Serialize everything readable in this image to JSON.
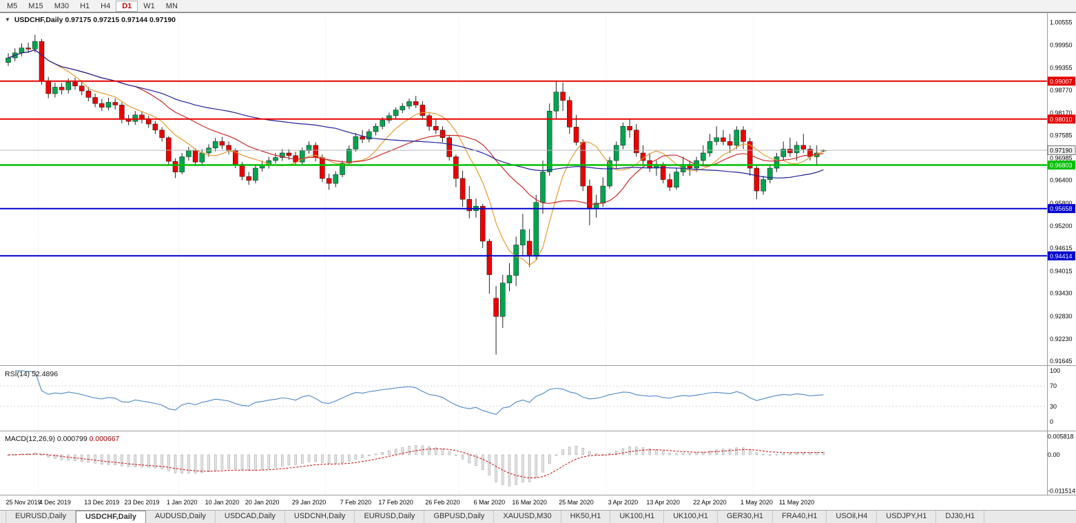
{
  "toolbar": {
    "timeframes": [
      {
        "label": "M5",
        "active": false
      },
      {
        "label": "M15",
        "active": false
      },
      {
        "label": "M30",
        "active": false
      },
      {
        "label": "H1",
        "active": false
      },
      {
        "label": "H4",
        "active": false
      },
      {
        "label": "D1",
        "active": true
      },
      {
        "label": "W1",
        "active": false
      },
      {
        "label": "MN",
        "active": false
      }
    ]
  },
  "chart": {
    "symbol_label": "USDCHF,Daily",
    "ohlc": {
      "open": "0.97175",
      "high": "0.97215",
      "low": "0.97144",
      "close": "0.97190"
    },
    "current_price": "0.97190"
  },
  "indicators": {
    "rsi": {
      "name": "RSI(14)",
      "value": "52.4896",
      "levels": [
        {
          "label": "100",
          "value": 100
        },
        {
          "label": "70",
          "value": 70
        },
        {
          "label": "30",
          "value": 30
        },
        {
          "label": "0",
          "value": 0
        }
      ]
    },
    "macd": {
      "name": "MACD(12,26,9)",
      "value_main": "0.000799",
      "value_signal": "0.000667",
      "axis": [
        {
          "label": "0.005818",
          "value": 0.005818
        },
        {
          "label": "0.00",
          "value": 0
        },
        {
          "label": "-0.011514",
          "value": -0.011514
        }
      ]
    }
  },
  "price_axis_labels": [
    "1.00555",
    "0.99950",
    "0.99355",
    "0.98770",
    "0.98170",
    "0.97585",
    "0.96985",
    "0.96400",
    "0.95800",
    "0.95200",
    "0.94615",
    "0.94015",
    "0.93430",
    "0.92830",
    "0.92230",
    "0.91645"
  ],
  "hlines": [
    {
      "price": 0.99007,
      "label": "0.99007",
      "color": "#e60000",
      "width": 2
    },
    {
      "price": 0.9801,
      "label": "0.98010",
      "color": "#e60000",
      "width": 2
    },
    {
      "price": 0.96803,
      "label": "0.96803",
      "color": "#00c000",
      "width": 2.5
    },
    {
      "price": 0.95658,
      "label": "0.95658",
      "color": "#0000d0",
      "width": 2
    },
    {
      "price": 0.94414,
      "label": "0.94414",
      "color": "#0000d0",
      "width": 2
    }
  ],
  "chart_data": {
    "type": "candlestick",
    "symbol": "USDCHF",
    "timeframe": "Daily",
    "price_range": {
      "top": 1.0067,
      "bottom": 0.9163
    },
    "colors": {
      "up": "#00a64f",
      "down": "#ee0000"
    },
    "moving_averages": [
      {
        "period": 8,
        "color": "#e39b2d"
      },
      {
        "period": 20,
        "color": "#cc2626"
      },
      {
        "period": 50,
        "color": "#1f1f99"
      }
    ],
    "separators": [
      5,
      26,
      48,
      68,
      90,
      112
    ],
    "time_labels": [
      {
        "label": "25 Nov 2019",
        "index": 0
      },
      {
        "label": "4 Dec 2019",
        "index": 7
      },
      {
        "label": "13 Dec 2019",
        "index": 14
      },
      {
        "label": "23 Dec 2019",
        "index": 20
      },
      {
        "label": "1 Jan 2020",
        "index": 26
      },
      {
        "label": "10 Jan 2020",
        "index": 32
      },
      {
        "label": "20 Jan 2020",
        "index": 38
      },
      {
        "label": "29 Jan 2020",
        "index": 45
      },
      {
        "label": "7 Feb 2020",
        "index": 52
      },
      {
        "label": "17 Feb 2020",
        "index": 58
      },
      {
        "label": "26 Feb 2020",
        "index": 65
      },
      {
        "label": "6 Mar 2020",
        "index": 72
      },
      {
        "label": "16 Mar 2020",
        "index": 78
      },
      {
        "label": "25 Mar 2020",
        "index": 85
      },
      {
        "label": "3 Apr 2020",
        "index": 92
      },
      {
        "label": "13 Apr 2020",
        "index": 98
      },
      {
        "label": "22 Apr 2020",
        "index": 105
      },
      {
        "label": "1 May 2020",
        "index": 112
      },
      {
        "label": "11 May 2020",
        "index": 118
      }
    ],
    "candles": [
      [
        0.995,
        0.9974,
        0.9941,
        0.9962
      ],
      [
        0.9962,
        0.9987,
        0.9953,
        0.9975
      ],
      [
        0.9975,
        1.0,
        0.9966,
        0.9988
      ],
      [
        0.9988,
        1.0002,
        0.9975,
        0.9985
      ],
      [
        0.9985,
        1.0023,
        0.9976,
        1.0005
      ],
      [
        1.0005,
        1.0012,
        0.9892,
        0.9902
      ],
      [
        0.9902,
        0.9912,
        0.9856,
        0.9868
      ],
      [
        0.9868,
        0.9897,
        0.9858,
        0.9885
      ],
      [
        0.9885,
        0.9896,
        0.9866,
        0.9878
      ],
      [
        0.9878,
        0.9908,
        0.9868,
        0.9898
      ],
      [
        0.9898,
        0.991,
        0.9878,
        0.9888
      ],
      [
        0.9888,
        0.9898,
        0.9864,
        0.9875
      ],
      [
        0.9875,
        0.9885,
        0.9848,
        0.9858
      ],
      [
        0.9858,
        0.9868,
        0.9832,
        0.9842
      ],
      [
        0.9842,
        0.9854,
        0.9822,
        0.9832
      ],
      [
        0.9832,
        0.9857,
        0.9824,
        0.9845
      ],
      [
        0.9845,
        0.9856,
        0.9826,
        0.9838
      ],
      [
        0.9838,
        0.9845,
        0.979,
        0.98
      ],
      [
        0.98,
        0.9812,
        0.9785,
        0.9795
      ],
      [
        0.9795,
        0.9822,
        0.9786,
        0.9812
      ],
      [
        0.9812,
        0.9822,
        0.979,
        0.98
      ],
      [
        0.98,
        0.981,
        0.9778,
        0.9788
      ],
      [
        0.9788,
        0.9796,
        0.9762,
        0.9772
      ],
      [
        0.9772,
        0.978,
        0.9742,
        0.9752
      ],
      [
        0.9752,
        0.9756,
        0.968,
        0.969
      ],
      [
        0.969,
        0.9698,
        0.9646,
        0.9662
      ],
      [
        0.9662,
        0.9712,
        0.9656,
        0.9702
      ],
      [
        0.9702,
        0.9728,
        0.9692,
        0.9718
      ],
      [
        0.9718,
        0.9724,
        0.9678,
        0.9688
      ],
      [
        0.9688,
        0.9722,
        0.968,
        0.9712
      ],
      [
        0.9712,
        0.9735,
        0.9702,
        0.9725
      ],
      [
        0.9725,
        0.9752,
        0.9716,
        0.9742
      ],
      [
        0.9742,
        0.9754,
        0.9722,
        0.9732
      ],
      [
        0.9732,
        0.9742,
        0.9708,
        0.9718
      ],
      [
        0.9718,
        0.9724,
        0.9672,
        0.9682
      ],
      [
        0.9682,
        0.9688,
        0.964,
        0.965
      ],
      [
        0.965,
        0.9662,
        0.9628,
        0.964
      ],
      [
        0.964,
        0.9682,
        0.9632,
        0.9672
      ],
      [
        0.9672,
        0.9692,
        0.9663,
        0.968
      ],
      [
        0.968,
        0.9702,
        0.9671,
        0.9692
      ],
      [
        0.9692,
        0.9712,
        0.9684,
        0.97
      ],
      [
        0.97,
        0.9722,
        0.9691,
        0.9712
      ],
      [
        0.9712,
        0.9722,
        0.9694,
        0.9705
      ],
      [
        0.9705,
        0.9715,
        0.9678,
        0.9688
      ],
      [
        0.9688,
        0.9726,
        0.968,
        0.9718
      ],
      [
        0.9718,
        0.9742,
        0.971,
        0.9732
      ],
      [
        0.9732,
        0.974,
        0.969,
        0.97
      ],
      [
        0.97,
        0.9708,
        0.9636,
        0.9645
      ],
      [
        0.9645,
        0.9658,
        0.9615,
        0.9632
      ],
      [
        0.9632,
        0.9664,
        0.9622,
        0.9655
      ],
      [
        0.9655,
        0.9692,
        0.9648,
        0.9685
      ],
      [
        0.9685,
        0.9732,
        0.9678,
        0.9722
      ],
      [
        0.9722,
        0.9764,
        0.9715,
        0.9755
      ],
      [
        0.9755,
        0.9772,
        0.9738,
        0.9748
      ],
      [
        0.9748,
        0.9775,
        0.974,
        0.9768
      ],
      [
        0.9768,
        0.979,
        0.9758,
        0.9782
      ],
      [
        0.9782,
        0.9806,
        0.9774,
        0.9798
      ],
      [
        0.9798,
        0.9818,
        0.979,
        0.981
      ],
      [
        0.981,
        0.9832,
        0.9802,
        0.9825
      ],
      [
        0.9825,
        0.9843,
        0.9817,
        0.9835
      ],
      [
        0.9835,
        0.9855,
        0.9827,
        0.9847
      ],
      [
        0.9847,
        0.9862,
        0.983,
        0.9838
      ],
      [
        0.9838,
        0.9848,
        0.98,
        0.981
      ],
      [
        0.981,
        0.9816,
        0.977,
        0.9782
      ],
      [
        0.9782,
        0.98,
        0.9762,
        0.9772
      ],
      [
        0.9772,
        0.9782,
        0.974,
        0.9752
      ],
      [
        0.9752,
        0.9758,
        0.9692,
        0.9702
      ],
      [
        0.9702,
        0.9708,
        0.9622,
        0.9645
      ],
      [
        0.9645,
        0.9665,
        0.957,
        0.959
      ],
      [
        0.959,
        0.9625,
        0.954,
        0.956
      ],
      [
        0.956,
        0.9592,
        0.9542,
        0.9572
      ],
      [
        0.9572,
        0.9578,
        0.9462,
        0.948
      ],
      [
        0.948,
        0.9486,
        0.9342,
        0.9392
      ],
      [
        0.933,
        0.9362,
        0.9182,
        0.9282
      ],
      [
        0.9282,
        0.9392,
        0.9252,
        0.937
      ],
      [
        0.937,
        0.9422,
        0.9348,
        0.939
      ],
      [
        0.939,
        0.9492,
        0.9362,
        0.947
      ],
      [
        0.947,
        0.9552,
        0.9442,
        0.951
      ],
      [
        0.948,
        0.9512,
        0.9412,
        0.9442
      ],
      [
        0.9442,
        0.9602,
        0.9432,
        0.9582
      ],
      [
        0.9582,
        0.9692,
        0.9552,
        0.9662
      ],
      [
        0.9662,
        0.9842,
        0.9652,
        0.9822
      ],
      [
        0.9822,
        0.9901,
        0.9802,
        0.9872
      ],
      [
        0.9872,
        0.9897,
        0.9822,
        0.985
      ],
      [
        0.985,
        0.986,
        0.9762,
        0.978
      ],
      [
        0.978,
        0.9812,
        0.9732,
        0.974
      ],
      [
        0.974,
        0.9748,
        0.9612,
        0.9625
      ],
      [
        0.9625,
        0.9642,
        0.9522,
        0.9565
      ],
      [
        0.9565,
        0.9602,
        0.9542,
        0.958
      ],
      [
        0.958,
        0.9648,
        0.957,
        0.9625
      ],
      [
        0.9625,
        0.9702,
        0.9618,
        0.9692
      ],
      [
        0.9692,
        0.9742,
        0.9672,
        0.9732
      ],
      [
        0.9732,
        0.9792,
        0.9722,
        0.9782
      ],
      [
        0.9782,
        0.9802,
        0.9752,
        0.9772
      ],
      [
        0.9772,
        0.9788,
        0.9702,
        0.9712
      ],
      [
        0.9712,
        0.9732,
        0.9682,
        0.9692
      ],
      [
        0.9692,
        0.9712,
        0.9662,
        0.9672
      ],
      [
        0.9672,
        0.9692,
        0.9652,
        0.9682
      ],
      [
        0.9682,
        0.9688,
        0.9632,
        0.9642
      ],
      [
        0.9642,
        0.9658,
        0.9612,
        0.9622
      ],
      [
        0.9622,
        0.9672,
        0.9615,
        0.9662
      ],
      [
        0.9662,
        0.9702,
        0.9652,
        0.9682
      ],
      [
        0.9682,
        0.9692,
        0.9652,
        0.9672
      ],
      [
        0.9672,
        0.9702,
        0.9662,
        0.9692
      ],
      [
        0.9692,
        0.9732,
        0.9682,
        0.9712
      ],
      [
        0.9712,
        0.9762,
        0.9702,
        0.9742
      ],
      [
        0.9742,
        0.9782,
        0.9732,
        0.9752
      ],
      [
        0.9752,
        0.9772,
        0.9732,
        0.9742
      ],
      [
        0.9742,
        0.9762,
        0.9712,
        0.9732
      ],
      [
        0.9732,
        0.9782,
        0.9722,
        0.9772
      ],
      [
        0.9772,
        0.9782,
        0.9722,
        0.9742
      ],
      [
        0.9742,
        0.9752,
        0.9652,
        0.9672
      ],
      [
        0.9672,
        0.9682,
        0.959,
        0.9612
      ],
      [
        0.9612,
        0.9652,
        0.9602,
        0.9642
      ],
      [
        0.9642,
        0.9682,
        0.9632,
        0.9672
      ],
      [
        0.9672,
        0.9712,
        0.9662,
        0.9702
      ],
      [
        0.9702,
        0.9742,
        0.9692,
        0.9722
      ],
      [
        0.9722,
        0.9752,
        0.9702,
        0.9712
      ],
      [
        0.9712,
        0.9742,
        0.9692,
        0.9732
      ],
      [
        0.9732,
        0.9762,
        0.9712,
        0.9722
      ],
      [
        0.9722,
        0.9732,
        0.9692,
        0.9702
      ],
      [
        0.9702,
        0.9732,
        0.9682,
        0.9712
      ],
      [
        0.97175,
        0.97215,
        0.97144,
        0.9719
      ]
    ],
    "rsi": {
      "period": 14,
      "current": 52.4896
    },
    "macd": {
      "fast": 12,
      "slow": 26,
      "signal": 9,
      "current_main": 0.000799,
      "current_signal": 0.000667
    }
  },
  "tabs": [
    {
      "label": "EURUSD,Daily",
      "active": false
    },
    {
      "label": "USDCHF,Daily",
      "active": true
    },
    {
      "label": "AUDUSD,Daily",
      "active": false
    },
    {
      "label": "USDCAD,Daily",
      "active": false
    },
    {
      "label": "USDCNH,Daily",
      "active": false
    },
    {
      "label": "EURUSD,Daily",
      "active": false
    },
    {
      "label": "GBPUSD,Daily",
      "active": false
    },
    {
      "label": "XAUUSD,M30",
      "active": false
    },
    {
      "label": "HK50,H1",
      "active": false
    },
    {
      "label": "UK100,H1",
      "active": false
    },
    {
      "label": "UK100,H1",
      "active": false
    },
    {
      "label": "GER30,H1",
      "active": false
    },
    {
      "label": "FRA40,H1",
      "active": false
    },
    {
      "label": "USOil,H4",
      "active": false
    },
    {
      "label": "USDJPY,H1",
      "active": false
    },
    {
      "label": "DJ30,H1",
      "active": false
    }
  ]
}
